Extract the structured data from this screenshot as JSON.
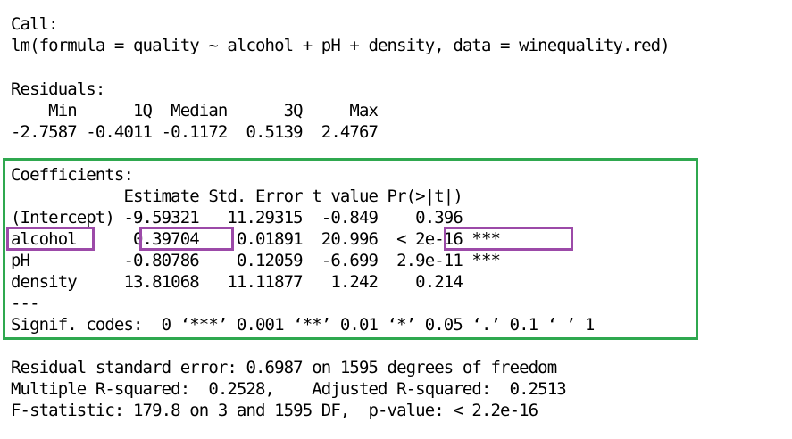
{
  "output": {
    "call_header": "Call:",
    "call_formula": "lm(formula = quality ~ alcohol + pH + density, data = winequality.red)",
    "residuals_header": "Residuals:",
    "residuals_labels": "    Min      1Q  Median      3Q     Max ",
    "residuals_values": "-2.7587 -0.4011 -0.1172  0.5139  2.4767 ",
    "coefficients_header": "Coefficients:",
    "coef_col_header": "            Estimate Std. Error t value Pr(>|t|)    ",
    "coef_rows": [
      "(Intercept) -9.59321   11.29315  -0.849    0.396    ",
      "alcohol      0.39704    0.01891  20.996  < 2e-16 ***",
      "pH          -0.80786    0.12059  -6.699  2.9e-11 ***",
      "density     13.81068   11.11877   1.242    0.214    "
    ],
    "separator": "---",
    "signif_codes": "Signif. codes:  0 ‘***’ 0.001 ‘**’ 0.01 ‘*’ 0.05 ‘.’ 0.1 ‘ ’ 1",
    "residual_se": "Residual standard error: 0.6987 on 1595 degrees of freedom",
    "r_squared": "Multiple R-squared:  0.2528,\tAdjusted R-squared:  0.2513 ",
    "f_statistic": "F-statistic: 179.8 on 3 and 1595 DF,  p-value: < 2.2e-16"
  },
  "highlights": {
    "coefficients_box_color": "#2fa84f",
    "alcohol_box_color": "#9c4aa8"
  }
}
